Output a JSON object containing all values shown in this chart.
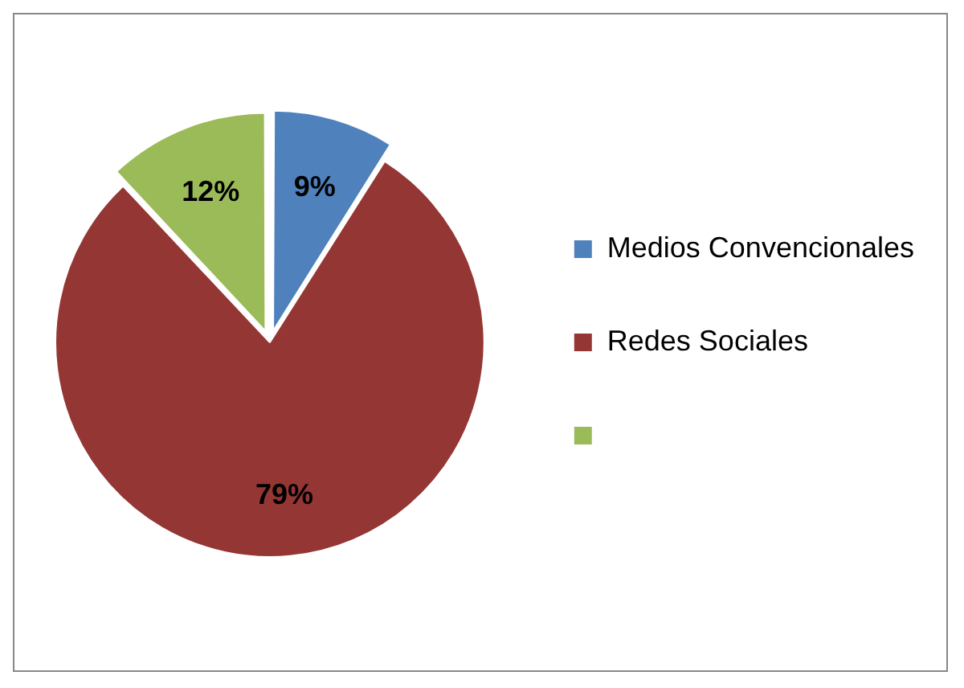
{
  "chart_data": {
    "type": "pie",
    "categories": [
      "Medios Convencionales",
      "Redes Sociales",
      null
    ],
    "values": [
      9,
      79,
      12
    ],
    "colors": [
      "#4f81bd",
      "#943634",
      "#9bbb59"
    ],
    "value_labels": [
      "9%",
      "79%",
      "12%"
    ],
    "legend": "right"
  }
}
